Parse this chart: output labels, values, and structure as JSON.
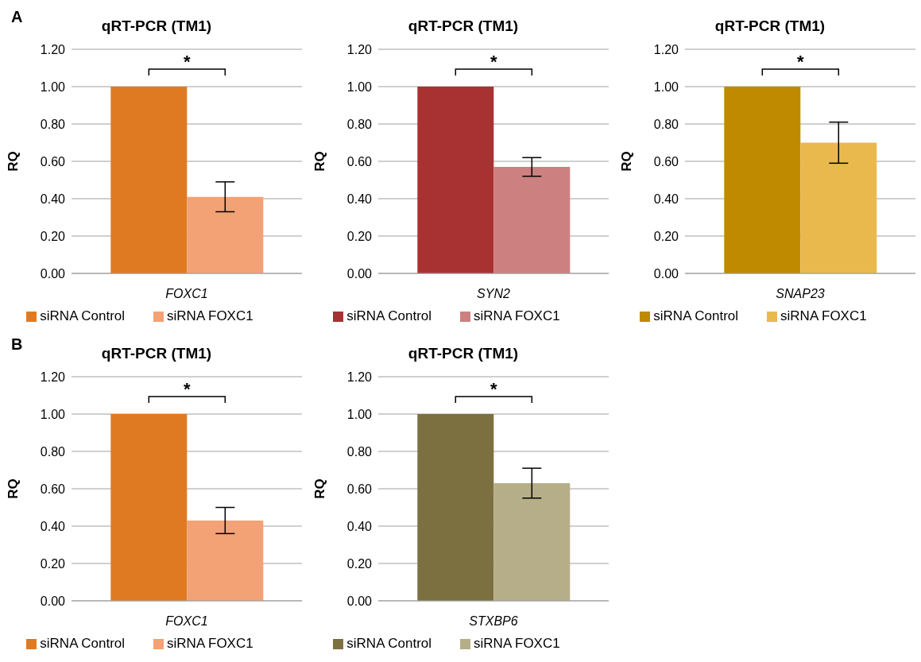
{
  "chart_data": [
    {
      "type": "bar",
      "title": "qRT-PCR (TM1)",
      "ylabel": "RQ",
      "categories": [
        "FOXC1"
      ],
      "series": [
        {
          "name": "siRNA Control",
          "color": "#e07a22",
          "values": [
            1.0
          ]
        },
        {
          "name": "siRNA FOXC1",
          "color": "#f2a274",
          "values": [
            0.41
          ],
          "errors": [
            0.08
          ]
        }
      ],
      "ylim": [
        0,
        1.2
      ],
      "yticks": [
        {
          "value": 0,
          "label": "0.00"
        },
        {
          "value": 0.2,
          "label": "0.20"
        },
        {
          "value": 0.4,
          "label": "0.40"
        },
        {
          "value": 0.6,
          "label": "0.60"
        },
        {
          "value": 0.8,
          "label": "0.80"
        },
        {
          "value": 1.0,
          "label": "1.00"
        },
        {
          "value": 1.2,
          "label": "1.20"
        }
      ],
      "grid": "y",
      "legend": "bottom",
      "annotations": [
        "A",
        "*"
      ]
    },
    {
      "type": "bar",
      "title": "qRT-PCR (TM1)",
      "ylabel": "RQ",
      "categories": [
        "SYN2"
      ],
      "series": [
        {
          "name": "siRNA Control",
          "color": "#a83232",
          "values": [
            1.0
          ]
        },
        {
          "name": "siRNA FOXC1",
          "color": "#cd8080",
          "values": [
            0.57
          ],
          "errors": [
            0.05
          ]
        }
      ],
      "ylim": [
        0,
        1.2
      ],
      "yticks": [
        {
          "value": 0,
          "label": "0.00"
        },
        {
          "value": 0.2,
          "label": "0.20"
        },
        {
          "value": 0.4,
          "label": "0.40"
        },
        {
          "value": 0.6,
          "label": "0.60"
        },
        {
          "value": 0.8,
          "label": "0.80"
        },
        {
          "value": 1.0,
          "label": "1.00"
        },
        {
          "value": 1.2,
          "label": "1.20"
        }
      ],
      "grid": "y",
      "legend": "bottom",
      "annotations": [
        "*"
      ]
    },
    {
      "type": "bar",
      "title": "qRT-PCR (TM1)",
      "ylabel": "RQ",
      "categories": [
        "SNAP23"
      ],
      "series": [
        {
          "name": "siRNA Control",
          "color": "#c08a00",
          "values": [
            1.0
          ]
        },
        {
          "name": "siRNA FOXC1",
          "color": "#eab94e",
          "values": [
            0.7
          ],
          "errors": [
            0.11
          ]
        }
      ],
      "ylim": [
        0,
        1.2
      ],
      "yticks": [
        {
          "value": 0,
          "label": "0.00"
        },
        {
          "value": 0.2,
          "label": "0.20"
        },
        {
          "value": 0.4,
          "label": "0.40"
        },
        {
          "value": 0.6,
          "label": "0.60"
        },
        {
          "value": 0.8,
          "label": "0.80"
        },
        {
          "value": 1.0,
          "label": "1.00"
        },
        {
          "value": 1.2,
          "label": "1.20"
        }
      ],
      "grid": "y",
      "legend": "bottom",
      "annotations": [
        "*"
      ]
    },
    {
      "type": "bar",
      "title": "qRT-PCR (TM1)",
      "ylabel": "RQ",
      "categories": [
        "FOXC1"
      ],
      "series": [
        {
          "name": "siRNA Control",
          "color": "#e07a22",
          "values": [
            1.0
          ]
        },
        {
          "name": "siRNA FOXC1",
          "color": "#f2a274",
          "values": [
            0.43
          ],
          "errors": [
            0.07
          ]
        }
      ],
      "ylim": [
        0,
        1.2
      ],
      "yticks": [
        {
          "value": 0,
          "label": "0.00"
        },
        {
          "value": 0.2,
          "label": "0.20"
        },
        {
          "value": 0.4,
          "label": "0.40"
        },
        {
          "value": 0.6,
          "label": "0.60"
        },
        {
          "value": 0.8,
          "label": "0.80"
        },
        {
          "value": 1.0,
          "label": "1.00"
        },
        {
          "value": 1.2,
          "label": "1.20"
        }
      ],
      "grid": "y",
      "legend": "bottom",
      "annotations": [
        "B",
        "*"
      ]
    },
    {
      "type": "bar",
      "title": "qRT-PCR (TM1)",
      "ylabel": "RQ",
      "categories": [
        "STXBP6"
      ],
      "series": [
        {
          "name": "siRNA Control",
          "color": "#7d7040",
          "values": [
            1.0
          ]
        },
        {
          "name": "siRNA FOXC1",
          "color": "#b5ae88",
          "values": [
            0.63
          ],
          "errors": [
            0.08
          ]
        }
      ],
      "ylim": [
        0,
        1.2
      ],
      "yticks": [
        {
          "value": 0,
          "label": "0.00"
        },
        {
          "value": 0.2,
          "label": "0.20"
        },
        {
          "value": 0.4,
          "label": "0.40"
        },
        {
          "value": 0.6,
          "label": "0.60"
        },
        {
          "value": 0.8,
          "label": "0.80"
        },
        {
          "value": 1.0,
          "label": "1.00"
        },
        {
          "value": 1.2,
          "label": "1.20"
        }
      ],
      "grid": "y",
      "legend": "bottom",
      "annotations": [
        "*"
      ]
    }
  ]
}
